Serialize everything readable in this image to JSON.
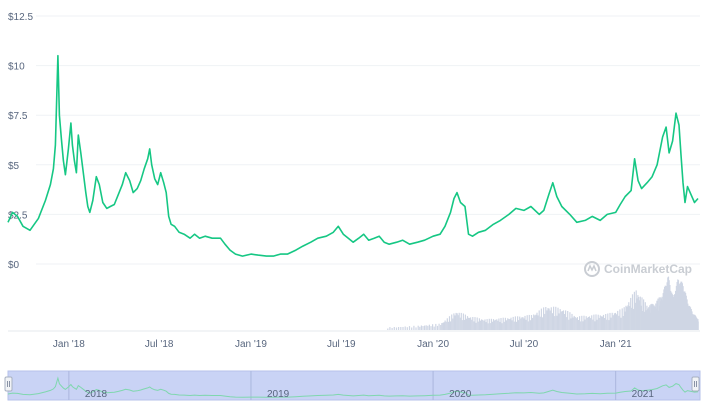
{
  "chart_data": {
    "type": "line",
    "title": "",
    "xlabel": "",
    "ylabel": "",
    "ylim": [
      0,
      12.5
    ],
    "y_ticks": [
      "$0",
      "$2.5",
      "$5",
      "$7.5",
      "$10",
      "$12.5"
    ],
    "x_ticks": [
      "Jan '18",
      "Jul '18",
      "Jan '19",
      "Jul '19",
      "Jan '20",
      "Jul '20",
      "Jan '21"
    ],
    "grid": "horizontal",
    "colors": {
      "line": "#16c784",
      "grid": "#eff2f5",
      "volume": "#cfd6e4",
      "navigator_fill": "#c9d3f5",
      "axis_text": "#58667e"
    },
    "series": [
      {
        "values": [
          [
            "2017-09-01",
            2.1
          ],
          [
            "2017-09-10",
            2.6
          ],
          [
            "2017-09-20",
            2.4
          ],
          [
            "2017-10-01",
            1.9
          ],
          [
            "2017-10-15",
            1.7
          ],
          [
            "2017-11-01",
            2.3
          ],
          [
            "2017-11-15",
            3.2
          ],
          [
            "2017-11-25",
            4.0
          ],
          [
            "2017-12-01",
            4.8
          ],
          [
            "2017-12-05",
            6.0
          ],
          [
            "2017-12-10",
            10.5
          ],
          [
            "2017-12-13",
            7.5
          ],
          [
            "2017-12-17",
            6.3
          ],
          [
            "2017-12-21",
            5.2
          ],
          [
            "2017-12-25",
            4.5
          ],
          [
            "2017-12-31",
            5.8
          ],
          [
            "2018-01-05",
            7.1
          ],
          [
            "2018-01-08",
            6.0
          ],
          [
            "2018-01-12",
            5.2
          ],
          [
            "2018-01-16",
            4.6
          ],
          [
            "2018-01-20",
            6.5
          ],
          [
            "2018-01-25",
            5.6
          ],
          [
            "2018-01-30",
            4.6
          ],
          [
            "2018-02-04",
            3.6
          ],
          [
            "2018-02-08",
            2.9
          ],
          [
            "2018-02-12",
            2.6
          ],
          [
            "2018-02-18",
            3.2
          ],
          [
            "2018-02-25",
            4.4
          ],
          [
            "2018-03-03",
            4.0
          ],
          [
            "2018-03-10",
            3.1
          ],
          [
            "2018-03-18",
            2.8
          ],
          [
            "2018-03-25",
            2.9
          ],
          [
            "2018-04-02",
            3.0
          ],
          [
            "2018-04-10",
            3.5
          ],
          [
            "2018-04-18",
            4.0
          ],
          [
            "2018-04-25",
            4.6
          ],
          [
            "2018-05-03",
            4.2
          ],
          [
            "2018-05-10",
            3.6
          ],
          [
            "2018-05-18",
            3.8
          ],
          [
            "2018-05-25",
            4.2
          ],
          [
            "2018-06-01",
            4.8
          ],
          [
            "2018-06-08",
            5.3
          ],
          [
            "2018-06-12",
            5.8
          ],
          [
            "2018-06-16",
            5.0
          ],
          [
            "2018-06-22",
            4.3
          ],
          [
            "2018-06-28",
            4.0
          ],
          [
            "2018-07-04",
            4.6
          ],
          [
            "2018-07-10",
            4.1
          ],
          [
            "2018-07-15",
            3.6
          ],
          [
            "2018-07-20",
            2.4
          ],
          [
            "2018-07-25",
            2.0
          ],
          [
            "2018-08-01",
            1.9
          ],
          [
            "2018-08-10",
            1.6
          ],
          [
            "2018-08-20",
            1.5
          ],
          [
            "2018-09-01",
            1.3
          ],
          [
            "2018-09-10",
            1.5
          ],
          [
            "2018-09-20",
            1.3
          ],
          [
            "2018-10-01",
            1.4
          ],
          [
            "2018-10-15",
            1.3
          ],
          [
            "2018-11-01",
            1.3
          ],
          [
            "2018-11-10",
            1.0
          ],
          [
            "2018-11-20",
            0.7
          ],
          [
            "2018-12-01",
            0.5
          ],
          [
            "2018-12-15",
            0.4
          ],
          [
            "2019-01-01",
            0.5
          ],
          [
            "2019-01-15",
            0.45
          ],
          [
            "2019-02-01",
            0.4
          ],
          [
            "2019-02-15",
            0.4
          ],
          [
            "2019-03-01",
            0.5
          ],
          [
            "2019-03-15",
            0.5
          ],
          [
            "2019-04-01",
            0.7
          ],
          [
            "2019-04-15",
            0.9
          ],
          [
            "2019-05-01",
            1.1
          ],
          [
            "2019-05-15",
            1.3
          ],
          [
            "2019-06-01",
            1.4
          ],
          [
            "2019-06-15",
            1.6
          ],
          [
            "2019-06-25",
            1.9
          ],
          [
            "2019-07-05",
            1.5
          ],
          [
            "2019-07-15",
            1.3
          ],
          [
            "2019-07-25",
            1.1
          ],
          [
            "2019-08-05",
            1.3
          ],
          [
            "2019-08-15",
            1.5
          ],
          [
            "2019-08-25",
            1.2
          ],
          [
            "2019-09-05",
            1.3
          ],
          [
            "2019-09-15",
            1.4
          ],
          [
            "2019-09-25",
            1.1
          ],
          [
            "2019-10-05",
            1.0
          ],
          [
            "2019-10-20",
            1.1
          ],
          [
            "2019-11-01",
            1.2
          ],
          [
            "2019-11-15",
            1.0
          ],
          [
            "2019-12-01",
            1.1
          ],
          [
            "2019-12-15",
            1.2
          ],
          [
            "2020-01-01",
            1.4
          ],
          [
            "2020-01-15",
            1.5
          ],
          [
            "2020-01-25",
            1.9
          ],
          [
            "2020-02-05",
            2.6
          ],
          [
            "2020-02-12",
            3.3
          ],
          [
            "2020-02-18",
            3.6
          ],
          [
            "2020-02-25",
            3.1
          ],
          [
            "2020-03-05",
            2.9
          ],
          [
            "2020-03-12",
            1.5
          ],
          [
            "2020-03-20",
            1.4
          ],
          [
            "2020-04-01",
            1.6
          ],
          [
            "2020-04-15",
            1.7
          ],
          [
            "2020-05-01",
            2.0
          ],
          [
            "2020-05-15",
            2.2
          ],
          [
            "2020-06-01",
            2.5
          ],
          [
            "2020-06-15",
            2.8
          ],
          [
            "2020-07-01",
            2.7
          ],
          [
            "2020-07-15",
            2.9
          ],
          [
            "2020-08-01",
            2.5
          ],
          [
            "2020-08-10",
            2.7
          ],
          [
            "2020-08-20",
            3.5
          ],
          [
            "2020-08-28",
            4.1
          ],
          [
            "2020-09-05",
            3.4
          ],
          [
            "2020-09-15",
            2.9
          ],
          [
            "2020-10-01",
            2.5
          ],
          [
            "2020-10-15",
            2.1
          ],
          [
            "2020-11-01",
            2.2
          ],
          [
            "2020-11-15",
            2.4
          ],
          [
            "2020-12-01",
            2.2
          ],
          [
            "2020-12-15",
            2.5
          ],
          [
            "2021-01-01",
            2.6
          ],
          [
            "2021-01-10",
            3.0
          ],
          [
            "2021-01-20",
            3.4
          ],
          [
            "2021-02-01",
            3.7
          ],
          [
            "2021-02-08",
            5.3
          ],
          [
            "2021-02-15",
            4.2
          ],
          [
            "2021-02-22",
            3.8
          ],
          [
            "2021-03-05",
            4.1
          ],
          [
            "2021-03-15",
            4.4
          ],
          [
            "2021-03-25",
            5.0
          ],
          [
            "2021-04-05",
            6.4
          ],
          [
            "2021-04-12",
            6.9
          ],
          [
            "2021-04-18",
            5.6
          ],
          [
            "2021-04-25",
            6.2
          ],
          [
            "2021-05-02",
            7.6
          ],
          [
            "2021-05-08",
            7.0
          ],
          [
            "2021-05-12",
            5.5
          ],
          [
            "2021-05-16",
            4.1
          ],
          [
            "2021-05-20",
            3.1
          ],
          [
            "2021-05-25",
            3.9
          ],
          [
            "2021-06-01",
            3.5
          ],
          [
            "2021-06-08",
            3.1
          ],
          [
            "2021-06-15",
            3.3
          ]
        ]
      }
    ],
    "volume_indicator": [
      [
        "2019-10-01",
        0.05
      ],
      [
        "2019-12-01",
        0.08
      ],
      [
        "2020-01-15",
        0.12
      ],
      [
        "2020-02-15",
        0.35
      ],
      [
        "2020-03-15",
        0.25
      ],
      [
        "2020-04-15",
        0.2
      ],
      [
        "2020-05-15",
        0.22
      ],
      [
        "2020-06-15",
        0.25
      ],
      [
        "2020-07-15",
        0.28
      ],
      [
        "2020-08-15",
        0.45
      ],
      [
        "2020-09-15",
        0.4
      ],
      [
        "2020-10-15",
        0.25
      ],
      [
        "2020-11-15",
        0.28
      ],
      [
        "2020-12-15",
        0.3
      ],
      [
        "2021-01-15",
        0.4
      ],
      [
        "2021-02-10",
        0.75
      ],
      [
        "2021-03-05",
        0.45
      ],
      [
        "2021-03-20",
        0.5
      ],
      [
        "2021-04-05",
        0.7
      ],
      [
        "2021-04-15",
        1.0
      ],
      [
        "2021-04-25",
        0.6
      ],
      [
        "2021-05-05",
        0.95
      ],
      [
        "2021-05-15",
        0.85
      ],
      [
        "2021-05-25",
        0.5
      ],
      [
        "2021-06-05",
        0.3
      ],
      [
        "2021-06-15",
        0.2
      ]
    ],
    "navigator": {
      "years": [
        "2018",
        "2019",
        "2020",
        "2021"
      ]
    },
    "watermark": "CoinMarketCap"
  }
}
